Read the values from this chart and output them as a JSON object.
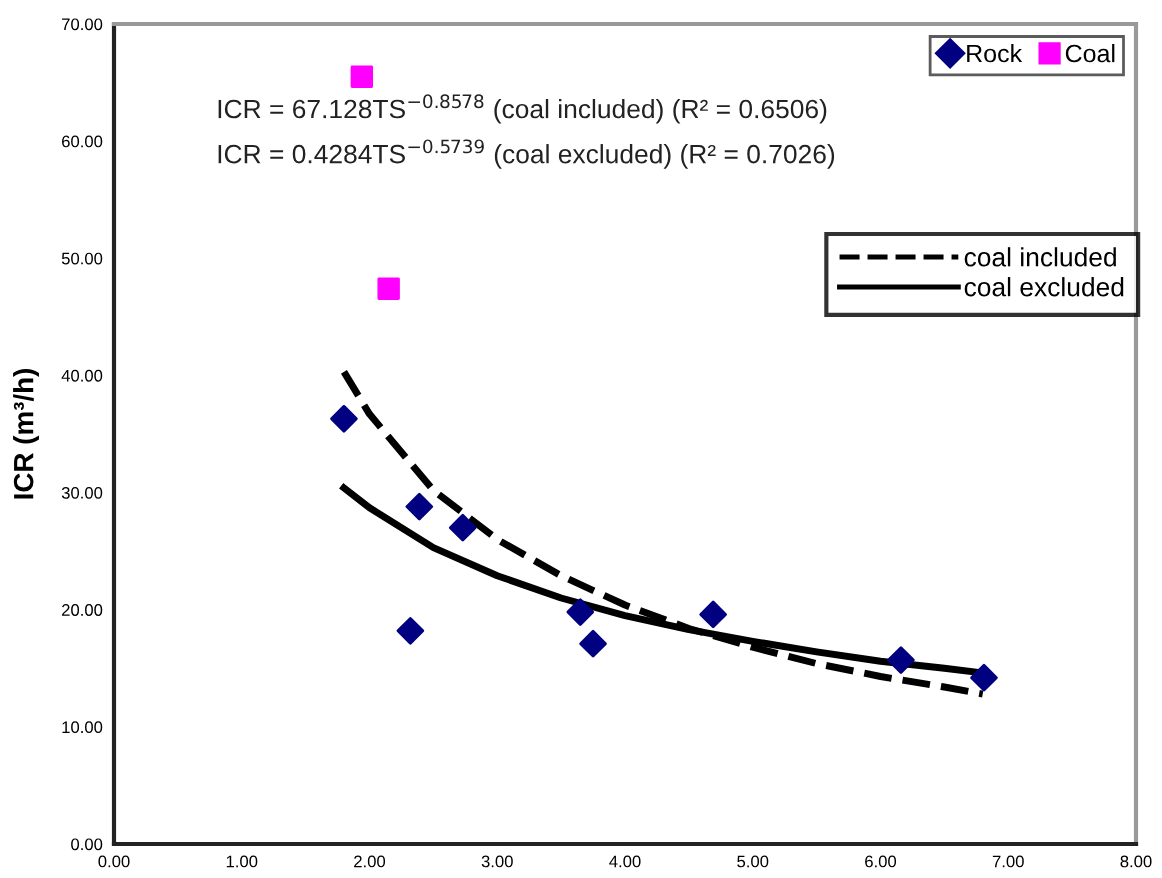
{
  "chart_data": {
    "type": "scatter",
    "ylabel": "ICR (m³/h)",
    "xlim": [
      0,
      8
    ],
    "ylim": [
      0,
      70
    ],
    "xticks": [
      {
        "value": 0,
        "label": "0.00"
      },
      {
        "value": 1,
        "label": "1.00"
      },
      {
        "value": 2,
        "label": "2.00"
      },
      {
        "value": 3,
        "label": "3.00"
      },
      {
        "value": 4,
        "label": "4.00"
      },
      {
        "value": 5,
        "label": "5.00"
      },
      {
        "value": 6,
        "label": "6.00"
      },
      {
        "value": 7,
        "label": "7.00"
      },
      {
        "value": 8,
        "label": "8.00"
      }
    ],
    "yticks": [
      {
        "value": 0,
        "label": "0.00"
      },
      {
        "value": 10,
        "label": "10.00"
      },
      {
        "value": 20,
        "label": "20.00"
      },
      {
        "value": 30,
        "label": "30.00"
      },
      {
        "value": 40,
        "label": "40.00"
      },
      {
        "value": 50,
        "label": "50.00"
      },
      {
        "value": 60,
        "label": "60.00"
      },
      {
        "value": 70,
        "label": "70.00"
      }
    ],
    "grid": false,
    "legend": "top right",
    "series": [
      {
        "name": "Rock",
        "marker": "diamond",
        "color": "#000080",
        "x": [
          1.8,
          2.32,
          2.39,
          2.73,
          3.65,
          3.75,
          4.69,
          6.16,
          6.81
        ],
        "values": [
          36.3,
          18.2,
          28.8,
          27.0,
          19.8,
          17.1,
          19.6,
          15.7,
          14.2
        ]
      },
      {
        "name": "Coal",
        "marker": "square",
        "color": "#ff00ff",
        "x": [
          1.94,
          2.15
        ],
        "values": [
          65.5,
          47.4
        ]
      },
      {
        "name": "coal included",
        "type": "line",
        "marker": "none",
        "line_style": "dashed",
        "color": "#000000",
        "x": [
          1.8,
          2.0,
          2.5,
          3.0,
          3.5,
          4.0,
          4.5,
          5.0,
          5.5,
          6.0,
          6.5,
          6.8
        ],
        "values": [
          40.3,
          36.7,
          30.2,
          26.0,
          22.9,
          20.4,
          18.4,
          16.8,
          15.4,
          14.3,
          13.4,
          12.8
        ]
      },
      {
        "name": "coal excluded",
        "type": "line",
        "marker": "none",
        "line_style": "solid",
        "color": "#000000",
        "x": [
          1.8,
          2.0,
          2.5,
          3.0,
          3.5,
          4.0,
          4.5,
          5.0,
          5.5,
          6.0,
          6.5,
          6.8
        ],
        "values": [
          30.4,
          28.7,
          25.3,
          22.9,
          21.0,
          19.5,
          18.3,
          17.3,
          16.4,
          15.6,
          15.0,
          14.6
        ]
      }
    ],
    "annotations": [
      "ICR = 67.128TS$^{−0.8578}$ (coal included) (R² = 0.6506)",
      "ICR = 0.4284TS$^{−0.5739}$ (coal excluded) (R² = 0.7026)"
    ]
  }
}
